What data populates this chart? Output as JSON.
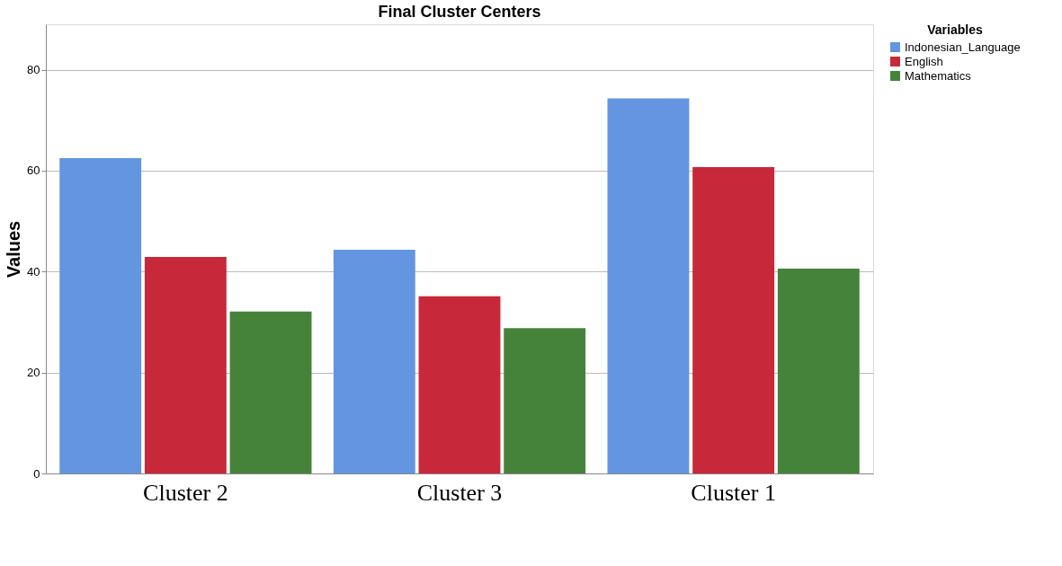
{
  "chart_data": {
    "type": "bar",
    "title": "Final Cluster Centers",
    "ylabel": "Values",
    "legend_title": "Variables",
    "categories": [
      "Cluster 2",
      "Cluster 3",
      "Cluster 1"
    ],
    "series": [
      {
        "name": "Indonesian_Language",
        "color": "#6495e0",
        "values": [
          62.5,
          44.3,
          74.3
        ]
      },
      {
        "name": "English",
        "color": "#c7283a",
        "values": [
          42.9,
          35.1,
          60.7
        ]
      },
      {
        "name": "Mathematics",
        "color": "#45833a",
        "values": [
          32.1,
          28.8,
          40.6
        ]
      }
    ],
    "ylim": [
      0,
      89
    ],
    "yticks": [
      0,
      20,
      40,
      60,
      80
    ],
    "grid": "y",
    "legend": "top right"
  }
}
